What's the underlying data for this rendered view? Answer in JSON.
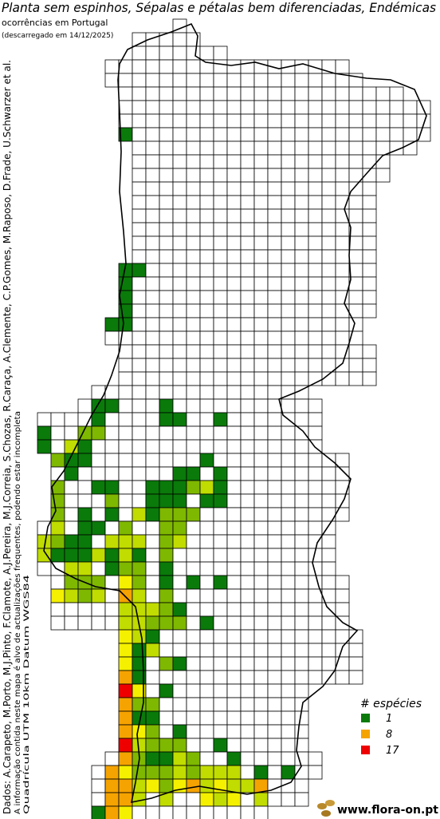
{
  "header": {
    "title": "Planta sem espinhos, Sépalas e pétalas bem diferenciadas, Endémicas",
    "subtitle": "ocorrências em Portugal",
    "date": "(descarregado em 14/12/2025)"
  },
  "credits": [
    "Dados: A.Carapeto, M.Porto, M.J.Pinto, F.Clamote, A.J.Pereira, M.J.Correia, S.Chozas, R.Caraça, A.Clemente, C.P.Gomes, M.Raposo, D.Frade, U.Schwarzer et al.",
    "A informação contida neste mapa é alvo de actualizações frequentes, podendo estar incompleta",
    "Quadrícula UTM 10km Datum WGS84"
  ],
  "legend": {
    "title": "# espécies",
    "entries": [
      {
        "value": 1,
        "color": "#0a7a0a"
      },
      {
        "value": 8,
        "color": "#f5a300"
      },
      {
        "value": 17,
        "color": "#ee0000"
      }
    ]
  },
  "logo": "www.flora-on.pt"
}
